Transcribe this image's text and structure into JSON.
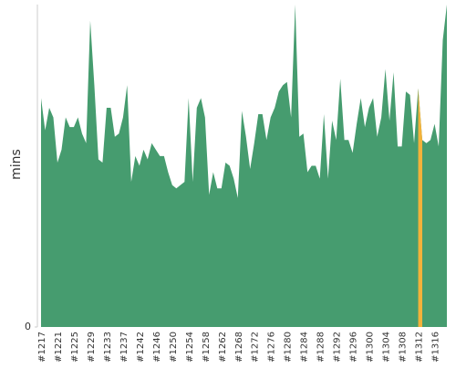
{
  "chart_data": {
    "type": "area",
    "ylabel": "mins",
    "categories": [
      "#1217",
      null,
      null,
      null,
      "#1221",
      null,
      null,
      null,
      "#1225",
      null,
      null,
      null,
      "#1229",
      null,
      null,
      null,
      "#1233",
      null,
      null,
      null,
      "#1237",
      null,
      null,
      null,
      "#1242",
      null,
      null,
      null,
      "#1246",
      null,
      null,
      null,
      "#1250",
      null,
      null,
      null,
      "#1254",
      null,
      null,
      null,
      "#1258",
      null,
      null,
      null,
      "#1262",
      null,
      null,
      null,
      "#1268",
      null,
      null,
      null,
      "#1272",
      null,
      null,
      null,
      "#1276",
      null,
      null,
      null,
      "#1280",
      null,
      null,
      null,
      "#1284",
      null,
      null,
      null,
      "#1288",
      null,
      null,
      null,
      "#1292",
      null,
      null,
      null,
      "#1296",
      null,
      null,
      null,
      "#1300",
      null,
      null,
      null,
      "#1304",
      null,
      null,
      null,
      "#1308",
      null,
      null,
      null,
      "#1312",
      null,
      null,
      null,
      "#1316",
      null,
      null,
      null
    ],
    "values": [
      71,
      61,
      68,
      65,
      51,
      55,
      65,
      62,
      62,
      65,
      60,
      57,
      95,
      75,
      52,
      51,
      68,
      68,
      59,
      60,
      65,
      75,
      45,
      53,
      50,
      55,
      52,
      57,
      55,
      53,
      53,
      48,
      44,
      43,
      44,
      45,
      71,
      45,
      68,
      71,
      65,
      41,
      48,
      43,
      43,
      51,
      50,
      46,
      40,
      67,
      59,
      49,
      57,
      66,
      66,
      58,
      65,
      68,
      73,
      75,
      76,
      65,
      100,
      59,
      60,
      48,
      50,
      50,
      46,
      66,
      46,
      64,
      58,
      77,
      58,
      58,
      54,
      63,
      71,
      62,
      68,
      71,
      59,
      65,
      80,
      64,
      79,
      56,
      56,
      73,
      72,
      57,
      74,
      58,
      57,
      58,
      63,
      56,
      89,
      100
    ],
    "color": "#469c6f",
    "highlight": {
      "index": 92,
      "color": "#f3b23a"
    },
    "ylim": [
      0,
      100
    ],
    "yticks": [
      0
    ]
  }
}
